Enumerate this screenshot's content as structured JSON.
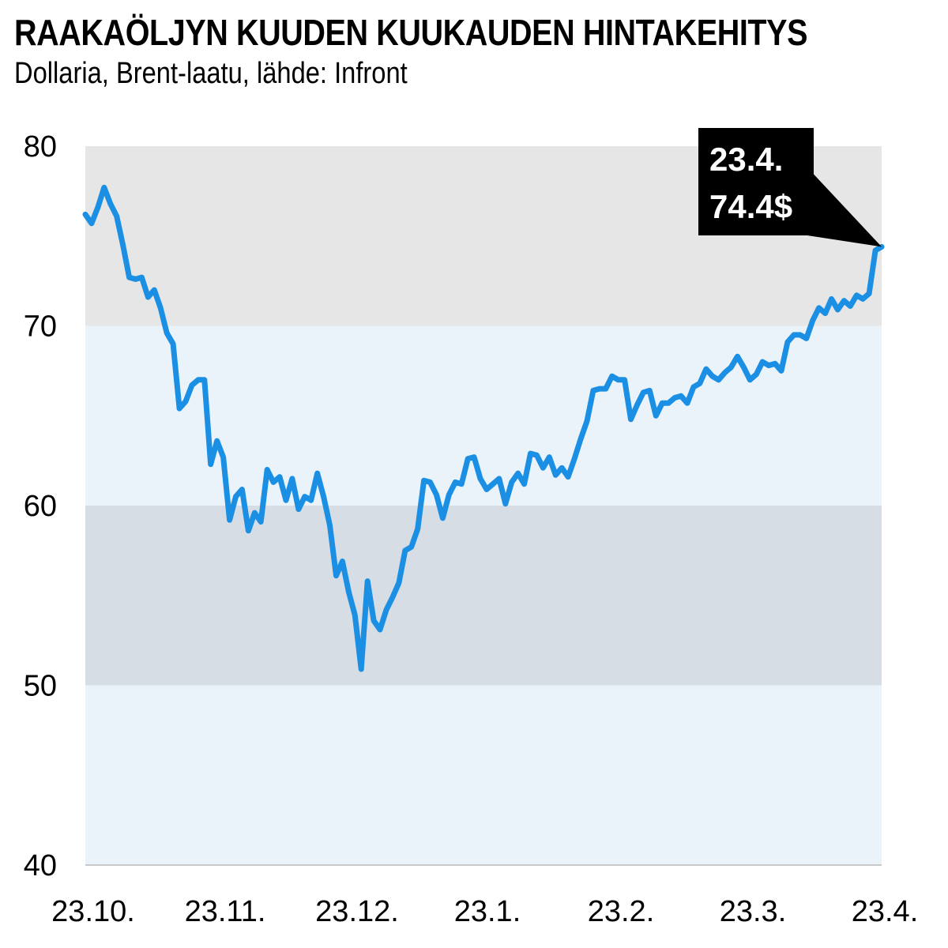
{
  "header": {
    "title": "RAAKAÖLJYN KUUDEN KUUKAUDEN HINTAKEHITYS",
    "subtitle": "Dollaria, Brent-laatu, lähde: Infront"
  },
  "colors": {
    "line": "#1a8fe3",
    "band_dark": "#d6dde4",
    "band_light": "#eaf2fa",
    "band_top": "#e6e6e6",
    "callout_bg": "#000000"
  },
  "chart_data": {
    "type": "line",
    "title": "RAAKAÖLJYN KUUDEN KUUKAUDEN HINTAKEHITYS",
    "subtitle": "Dollaria, Brent-laatu, lähde: Infront",
    "xlabel": "",
    "ylabel": "",
    "ylim": [
      40,
      80
    ],
    "yticks": [
      80,
      70,
      60,
      50,
      40
    ],
    "xticks": [
      "23.10.",
      "23.11.",
      "23.12.",
      "23.1.",
      "23.2.",
      "23.3.",
      "23.4."
    ],
    "series": [
      {
        "name": "Brent",
        "values": [
          76.2,
          75.7,
          76.6,
          77.7,
          76.8,
          76.1,
          74.5,
          72.7,
          72.6,
          72.7,
          71.6,
          72.0,
          71.0,
          69.6,
          69.0,
          65.4,
          65.8,
          66.7,
          67.0,
          67.0,
          62.3,
          63.6,
          62.7,
          59.2,
          60.5,
          60.9,
          58.6,
          59.6,
          59.1,
          62.0,
          61.3,
          61.6,
          60.3,
          61.5,
          59.8,
          60.5,
          60.3,
          61.8,
          60.5,
          58.9,
          56.1,
          56.9,
          55.2,
          53.9,
          50.9,
          55.8,
          53.6,
          53.1,
          54.2,
          54.9,
          55.7,
          57.5,
          57.7,
          58.7,
          61.4,
          61.3,
          60.6,
          59.3,
          60.6,
          61.3,
          61.2,
          62.6,
          62.7,
          61.5,
          60.9,
          61.2,
          61.5,
          60.1,
          61.3,
          61.8,
          61.2,
          62.9,
          62.8,
          62.1,
          62.7,
          61.7,
          62.1,
          61.6,
          62.6,
          63.7,
          64.7,
          66.4,
          66.5,
          66.5,
          67.2,
          67.0,
          67.0,
          64.8,
          65.6,
          66.3,
          66.4,
          65.0,
          65.7,
          65.7,
          66.0,
          66.1,
          65.7,
          66.6,
          66.8,
          67.6,
          67.2,
          67.0,
          67.4,
          67.7,
          68.3,
          67.7,
          67.0,
          67.3,
          68.0,
          67.8,
          67.9,
          67.5,
          69.1,
          69.5,
          69.5,
          69.3,
          70.3,
          71.0,
          70.7,
          71.5,
          70.9,
          71.4,
          71.1,
          71.7,
          71.5,
          71.8,
          74.2,
          74.4
        ]
      }
    ],
    "annotation": {
      "date": "23.4.",
      "value": "74.4$"
    },
    "bands": [
      {
        "from": 70,
        "to": 80,
        "shade": "top"
      },
      {
        "from": 60,
        "to": 70,
        "shade": "light"
      },
      {
        "from": 50,
        "to": 60,
        "shade": "dark"
      },
      {
        "from": 40,
        "to": 50,
        "shade": "light"
      }
    ]
  }
}
